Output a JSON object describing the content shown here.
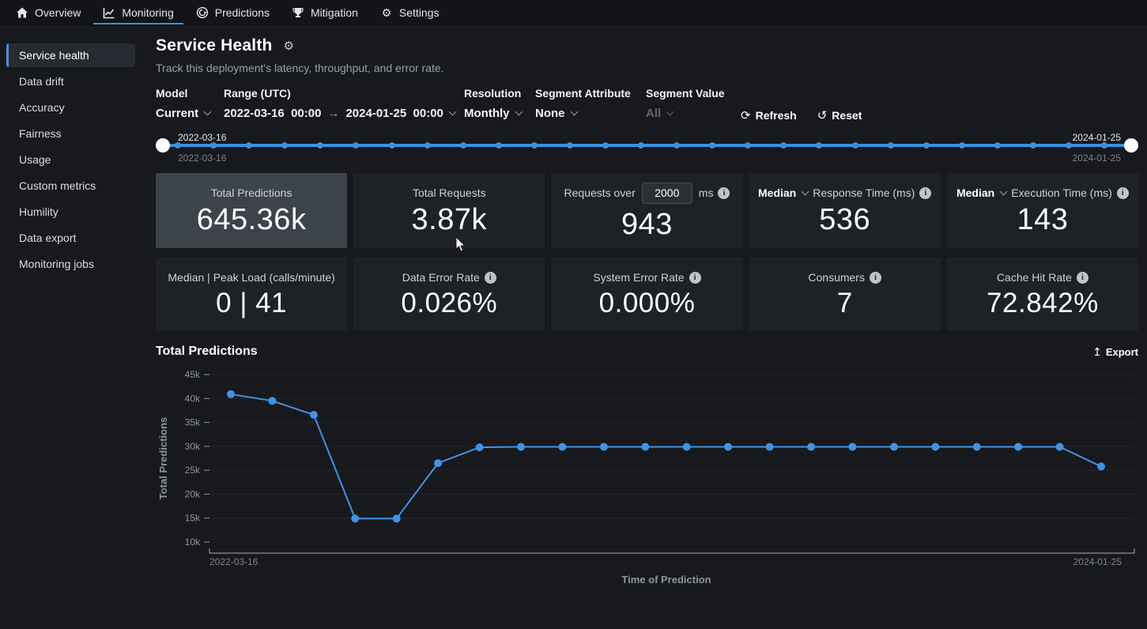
{
  "nav": {
    "items": [
      {
        "label": "Overview",
        "icon": "home-icon",
        "active": false
      },
      {
        "label": "Monitoring",
        "icon": "line-chart-icon",
        "active": true
      },
      {
        "label": "Predictions",
        "icon": "predictions-icon",
        "active": false
      },
      {
        "label": "Mitigation",
        "icon": "trophy-icon",
        "active": false
      },
      {
        "label": "Settings",
        "icon": "gear-icon",
        "active": false
      }
    ]
  },
  "sidebar": {
    "items": [
      {
        "label": "Service health",
        "active": true
      },
      {
        "label": "Data drift",
        "active": false
      },
      {
        "label": "Accuracy",
        "active": false
      },
      {
        "label": "Fairness",
        "active": false
      },
      {
        "label": "Usage",
        "active": false
      },
      {
        "label": "Custom metrics",
        "active": false
      },
      {
        "label": "Humility",
        "active": false
      },
      {
        "label": "Data export",
        "active": false
      },
      {
        "label": "Monitoring jobs",
        "active": false
      }
    ]
  },
  "header": {
    "title": "Service Health",
    "subtitle": "Track this deployment's latency, throughput, and error rate.",
    "settings_icon": "gear-icon"
  },
  "filters": {
    "model": {
      "label": "Model",
      "value": "Current"
    },
    "range": {
      "label": "Range (UTC)",
      "start_date": "2022-03-16",
      "start_time": "00:00",
      "arrow": "→",
      "end_date": "2024-01-25",
      "end_time": "00:00"
    },
    "resolution": {
      "label": "Resolution",
      "value": "Monthly"
    },
    "segment_attribute": {
      "label": "Segment Attribute",
      "value": "None"
    },
    "segment_value": {
      "label": "Segment Value",
      "value": "All",
      "disabled": true
    },
    "refresh_label": "Refresh",
    "reset_label": "Reset"
  },
  "timeline": {
    "start_label_top": "2022-03-16",
    "start_label_bottom": "2022-03-16",
    "end_label_top": "2024-01-25",
    "end_label_bottom": "2024-01-25",
    "dot_count": 27
  },
  "metrics": {
    "row1": [
      {
        "id": "total-predictions",
        "label": "Total Predictions",
        "value": "645.36k",
        "selected": true
      },
      {
        "id": "total-requests",
        "label": "Total Requests",
        "value": "3.87k"
      },
      {
        "id": "requests-over",
        "label_prefix": "Requests over",
        "input_value": "2000",
        "label_suffix": "ms",
        "info": true,
        "value": "943"
      },
      {
        "id": "response-time",
        "dropdown": "Median",
        "label": "Response Time (ms)",
        "info": true,
        "value": "536"
      },
      {
        "id": "execution-time",
        "dropdown": "Median",
        "label": "Execution Time (ms)",
        "info": true,
        "value": "143"
      }
    ],
    "row2": [
      {
        "id": "peak-load",
        "label": "Median | Peak Load (calls/minute)",
        "value": "0 | 41"
      },
      {
        "id": "data-error-rate",
        "label": "Data Error Rate",
        "info": true,
        "value": "0.026%"
      },
      {
        "id": "system-error-rate",
        "label": "System Error Rate",
        "info": true,
        "value": "0.000%"
      },
      {
        "id": "consumers",
        "label": "Consumers",
        "info": true,
        "value": "7"
      },
      {
        "id": "cache-hit-rate",
        "label": "Cache Hit Rate",
        "info": true,
        "value": "72.842%"
      }
    ]
  },
  "chart_section": {
    "title": "Total Predictions",
    "export_label": "Export"
  },
  "chart_data": {
    "type": "line",
    "title": "Total Predictions",
    "xlabel": "Time of Prediction",
    "ylabel": "Total Predictions",
    "x_start_label": "2022-03-16",
    "x_end_label": "2024-01-25",
    "ylim": [
      10000,
      45000
    ],
    "ytick_step": 5000,
    "yticks": [
      "10k",
      "15k",
      "20k",
      "25k",
      "30k",
      "35k",
      "40k",
      "45k"
    ],
    "grid": true,
    "legend": "none",
    "line_color": "#3f93e6",
    "series": [
      {
        "name": "Total Predictions",
        "values": [
          40900,
          39500,
          36600,
          14900,
          14900,
          26500,
          29800,
          29900,
          29900,
          29900,
          29900,
          29900,
          29900,
          29900,
          29900,
          29900,
          29900,
          29900,
          29900,
          29900,
          29900,
          25800
        ]
      }
    ]
  },
  "colors": {
    "accent_blue": "#3c8fe0",
    "page_bg": "#17191d",
    "card_bg": "#1e2227",
    "card_selected_bg": "#3c434b",
    "muted_text": "#99a0a8",
    "axis_text": "#8f959b"
  },
  "icons": {
    "refresh": "⟳",
    "reset": "↺",
    "export": "↥",
    "gear": "⚙"
  }
}
